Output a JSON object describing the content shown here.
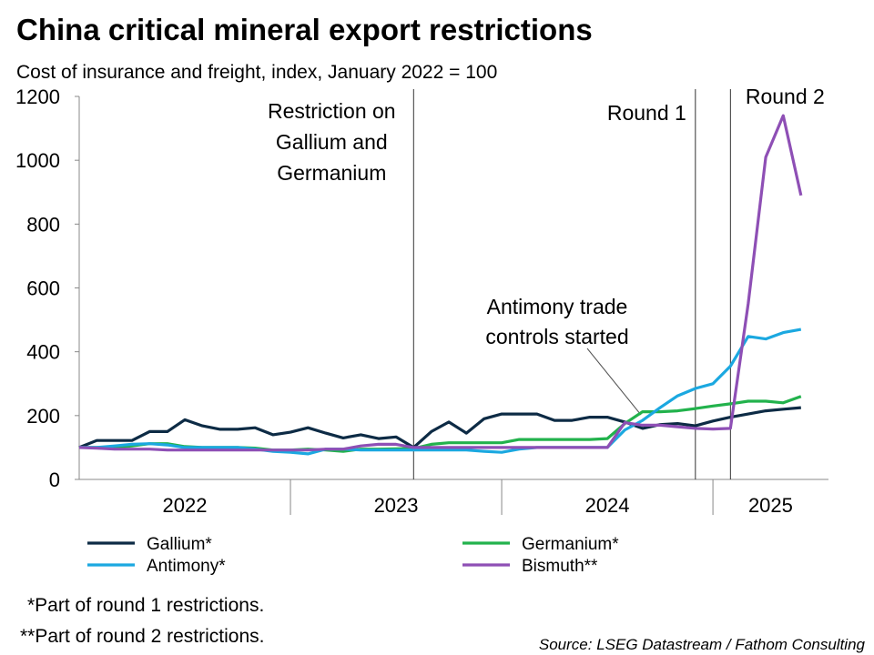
{
  "chart_data": {
    "type": "line",
    "title": "China critical mineral export restrictions",
    "subtitle": "Cost of insurance and freight, index, January 2022 = 100",
    "x": [
      2022,
      2022.083,
      2022.167,
      2022.25,
      2022.333,
      2022.417,
      2022.5,
      2022.583,
      2022.667,
      2022.75,
      2022.833,
      2022.917,
      2023,
      2023.083,
      2023.167,
      2023.25,
      2023.333,
      2023.417,
      2023.5,
      2023.583,
      2023.667,
      2023.75,
      2023.833,
      2023.917,
      2024,
      2024.083,
      2024.167,
      2024.25,
      2024.333,
      2024.417,
      2024.5,
      2024.583,
      2024.667,
      2024.75,
      2024.833,
      2024.917,
      2025,
      2025.083,
      2025.167,
      2025.25,
      2025.333,
      2025.417
    ],
    "series": [
      {
        "name": "Gallium*",
        "color": "#0d2b45",
        "values": [
          100,
          122,
          122,
          122,
          150,
          150,
          187,
          168,
          157,
          157,
          162,
          140,
          148,
          162,
          145,
          130,
          140,
          128,
          133,
          100,
          150,
          180,
          145,
          190,
          205,
          205,
          205,
          185,
          185,
          195,
          195,
          180,
          160,
          172,
          175,
          168,
          183,
          195,
          205,
          215,
          220,
          225
        ]
      },
      {
        "name": "Antimony*",
        "color": "#1ba8e0",
        "values": [
          100,
          100,
          105,
          110,
          112,
          108,
          100,
          100,
          100,
          100,
          95,
          88,
          85,
          80,
          95,
          95,
          92,
          92,
          92,
          92,
          92,
          92,
          92,
          88,
          85,
          95,
          100,
          100,
          100,
          100,
          100,
          155,
          185,
          225,
          262,
          285,
          300,
          355,
          448,
          440,
          460,
          470
        ]
      },
      {
        "name": "Germanium*",
        "color": "#22b24c",
        "values": [
          100,
          100,
          100,
          105,
          112,
          112,
          103,
          100,
          100,
          100,
          98,
          92,
          92,
          95,
          92,
          88,
          95,
          95,
          96,
          97,
          110,
          115,
          115,
          115,
          115,
          125,
          125,
          125,
          125,
          125,
          128,
          175,
          212,
          212,
          215,
          222,
          230,
          237,
          245,
          245,
          240,
          260
        ]
      },
      {
        "name": "Bismuth**",
        "color": "#8e4fb5",
        "values": [
          100,
          98,
          95,
          95,
          95,
          92,
          92,
          92,
          92,
          92,
          92,
          92,
          92,
          92,
          95,
          95,
          105,
          110,
          110,
          100,
          100,
          100,
          100,
          100,
          100,
          100,
          100,
          100,
          100,
          100,
          100,
          178,
          170,
          170,
          165,
          160,
          158,
          160,
          550,
          1010,
          1140,
          890
        ]
      }
    ],
    "xlim": [
      2022,
      2025.547
    ],
    "xticks": [
      {
        "value": 2022.5,
        "label": "2022"
      },
      {
        "value": 2023.5,
        "label": "2023"
      },
      {
        "value": 2024.5,
        "label": "2024"
      },
      {
        "value": 2025.273,
        "label": "2025"
      }
    ],
    "ylim": [
      0,
      1200
    ],
    "yticks": [
      0,
      200,
      400,
      600,
      800,
      1000,
      1200
    ],
    "events": [
      {
        "x": 2023.583,
        "lines": [
          "Restriction on",
          "Gallium and",
          "Germanium"
        ]
      },
      {
        "x": 2024.917,
        "lines": [
          "Round 1"
        ]
      },
      {
        "x": 2025.083,
        "lines": [
          "Round 2"
        ]
      }
    ],
    "annotation": [
      "Antimony trade",
      "controls started"
    ],
    "footnotes": [
      "*Part of round 1 restrictions.",
      "**Part of round 2 restrictions."
    ],
    "source": "Source: LSEG Datastream / Fathom Consulting"
  }
}
